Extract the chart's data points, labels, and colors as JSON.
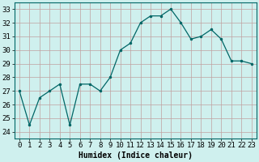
{
  "x": [
    0,
    1,
    2,
    3,
    4,
    5,
    6,
    7,
    8,
    9,
    10,
    11,
    12,
    13,
    14,
    15,
    16,
    17,
    18,
    19,
    20,
    21,
    22,
    23
  ],
  "y": [
    27,
    24.5,
    26.5,
    27,
    27.5,
    24.5,
    27.5,
    27.5,
    27,
    28,
    30,
    30.5,
    32,
    32.5,
    32.5,
    33,
    32,
    30.8,
    31,
    31.5,
    30.8,
    29.2,
    29.2,
    29
  ],
  "line_color": "#006666",
  "marker": ".",
  "marker_size": 3,
  "bg_color": "#cff0ee",
  "grid_color": "#c0a0a0",
  "xlabel": "Humidex (Indice chaleur)",
  "xlim": [
    -0.5,
    23.5
  ],
  "ylim": [
    23.5,
    33.5
  ],
  "yticks": [
    24,
    25,
    26,
    27,
    28,
    29,
    30,
    31,
    32,
    33
  ],
  "xtick_labels": [
    "0",
    "1",
    "2",
    "3",
    "4",
    "5",
    "6",
    "7",
    "8",
    "9",
    "10",
    "11",
    "12",
    "13",
    "14",
    "15",
    "16",
    "17",
    "18",
    "19",
    "20",
    "21",
    "22",
    "23"
  ],
  "label_fontsize": 7,
  "tick_fontsize": 6.5
}
